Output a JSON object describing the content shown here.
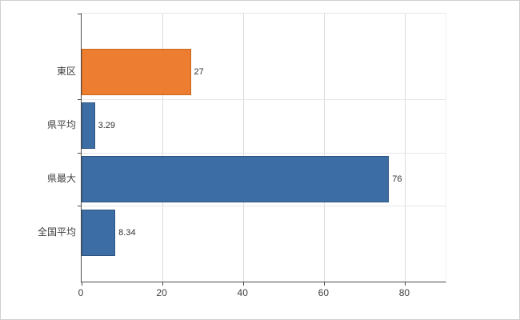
{
  "chart_data": {
    "type": "bar",
    "orientation": "horizontal",
    "categories": [
      "東区",
      "県平均",
      "県最大",
      "全国平均"
    ],
    "values": [
      27,
      3.29,
      76,
      8.34
    ],
    "value_labels": [
      "27",
      "3.29",
      "76",
      "8.34"
    ],
    "series_colors": [
      "#ED7D31",
      "#3C6EA5",
      "#3C6EA5",
      "#3C6EA5"
    ],
    "bar_border_colors": [
      "#C9661E",
      "#2D547F",
      "#2D547F",
      "#2D547F"
    ],
    "xlim": [
      0,
      90
    ],
    "x_ticks": [
      0,
      20,
      40,
      60,
      80
    ],
    "x_tick_labels": [
      "0",
      "20",
      "40",
      "60",
      "80"
    ],
    "grid": true,
    "legend": false
  },
  "style": {
    "background": "#ffffff",
    "axis_color": "#4d4d4d",
    "grid_color": "#dcdcdc",
    "boundary_grid_color": "#e7e7e7",
    "label_color": "#404040",
    "value_label_color": "#333333"
  }
}
